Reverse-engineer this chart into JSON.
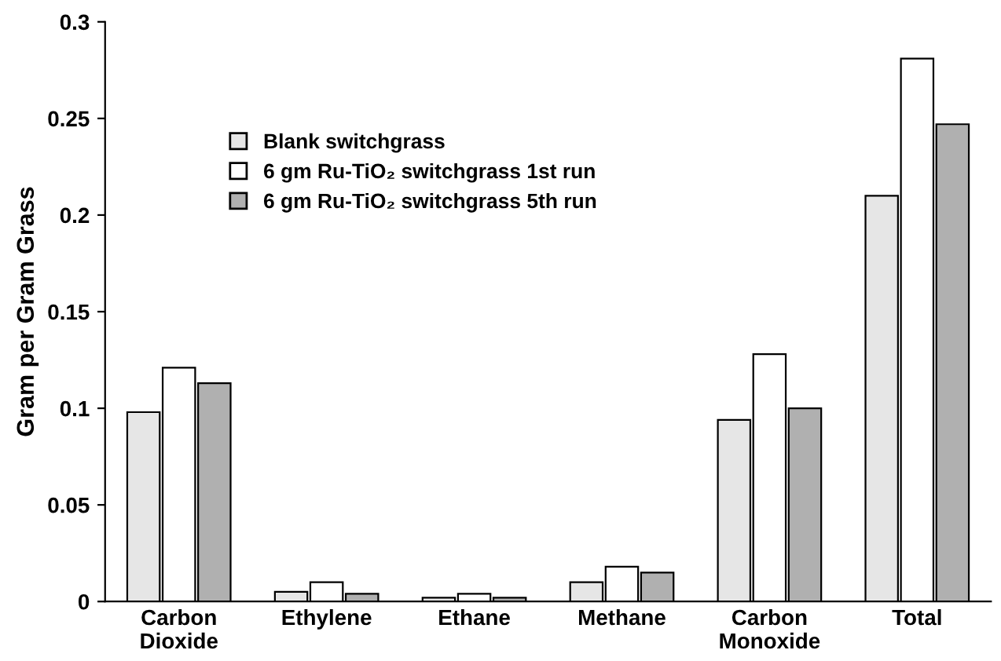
{
  "chart_data": {
    "type": "bar",
    "ylabel": "Gram per Gram Grass",
    "categories": [
      "Carbon\nDioxide",
      "Ethylene",
      "Ethane",
      "Methane",
      "Carbon\nMonoxide",
      "Total"
    ],
    "series": [
      {
        "name": "Blank switchgrass",
        "color": "#e6e6e6",
        "values": [
          0.098,
          0.005,
          0.002,
          0.01,
          0.094,
          0.21
        ]
      },
      {
        "name": "6 gm Ru-TiO₂ switchgrass 1st run",
        "color": "#ffffff",
        "values": [
          0.121,
          0.01,
          0.004,
          0.018,
          0.128,
          0.281
        ]
      },
      {
        "name": "6 gm Ru-TiO₂ switchgrass 5th run",
        "color": "#b0b0b0",
        "values": [
          0.113,
          0.004,
          0.002,
          0.015,
          0.1,
          0.247
        ]
      }
    ],
    "ylim": [
      0,
      0.3
    ],
    "yticks": [
      0,
      0.05,
      0.1,
      0.15,
      0.2,
      0.25,
      0.3
    ],
    "grid": false,
    "legend": "top left"
  }
}
